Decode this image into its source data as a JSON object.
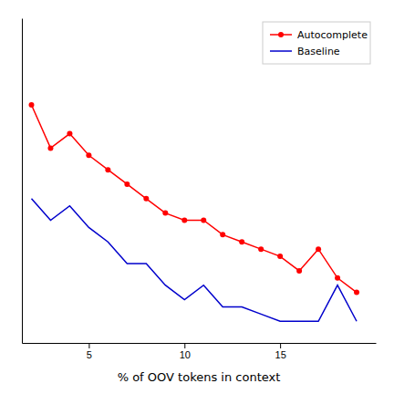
{
  "chart_data": {
    "type": "line",
    "xlabel": "% of OOV tokens in context",
    "x": [
      2,
      3,
      4,
      5,
      6,
      7,
      8,
      9,
      10,
      11,
      12,
      13,
      14,
      15,
      16,
      17,
      18,
      19
    ],
    "series": [
      {
        "name": "Autocomplete",
        "color": "#FF0000",
        "marker": "circle",
        "values": [
          0.68,
          0.62,
          0.64,
          0.61,
          0.59,
          0.57,
          0.55,
          0.53,
          0.52,
          0.52,
          0.5,
          0.49,
          0.48,
          0.47,
          0.45,
          0.48,
          0.44,
          0.42
        ]
      },
      {
        "name": "Baseline",
        "color": "#0000CC",
        "values": [
          0.55,
          0.52,
          0.54,
          0.51,
          0.49,
          0.46,
          0.46,
          0.43,
          0.41,
          0.43,
          0.4,
          0.4,
          0.39,
          0.38,
          0.38,
          0.38,
          0.43,
          0.38
        ]
      }
    ],
    "xlim": [
      1.5,
      20
    ],
    "xticks": [
      5,
      10,
      15
    ],
    "ylim": [
      0.35,
      0.8
    ],
    "grid": false,
    "legend": "upper right",
    "tick_labels": "x"
  }
}
